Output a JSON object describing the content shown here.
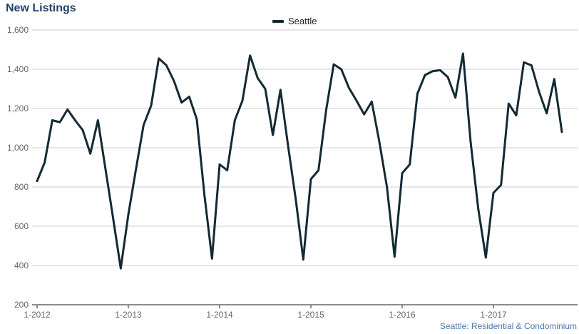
{
  "title": "New Listings",
  "legend": {
    "label": "Seattle"
  },
  "footer": "Seattle: Residential & Condominium",
  "colors": {
    "line": "#132a33",
    "title": "#1f4268",
    "footer": "#4678ae",
    "axis_text": "#666666",
    "grid": "#cccccc",
    "axis_line": "#8c8c8c"
  },
  "chart_data": {
    "type": "line",
    "title": "New Listings",
    "legend_entries": [
      "Seattle"
    ],
    "x_interval": "month",
    "x_tick_labels": [
      "1-2012",
      "1-2013",
      "1-2014",
      "1-2015",
      "1-2016",
      "1-2017"
    ],
    "x_tick_month_indices": [
      0,
      12,
      24,
      36,
      48,
      60
    ],
    "y_ticks": [
      200,
      400,
      600,
      800,
      1000,
      1200,
      1400,
      1600
    ],
    "ylim": [
      200,
      1600
    ],
    "grid": "horizontal",
    "legend_position": "top-center",
    "months": [
      "2012-01",
      "2012-02",
      "2012-03",
      "2012-04",
      "2012-05",
      "2012-06",
      "2012-07",
      "2012-08",
      "2012-09",
      "2012-10",
      "2012-11",
      "2012-12",
      "2013-01",
      "2013-02",
      "2013-03",
      "2013-04",
      "2013-05",
      "2013-06",
      "2013-07",
      "2013-08",
      "2013-09",
      "2013-10",
      "2013-11",
      "2013-12",
      "2014-01",
      "2014-02",
      "2014-03",
      "2014-04",
      "2014-05",
      "2014-06",
      "2014-07",
      "2014-08",
      "2014-09",
      "2014-10",
      "2014-11",
      "2014-12",
      "2015-01",
      "2015-02",
      "2015-03",
      "2015-04",
      "2015-05",
      "2015-06",
      "2015-07",
      "2015-08",
      "2015-09",
      "2015-10",
      "2015-11",
      "2015-12",
      "2016-01",
      "2016-02",
      "2016-03",
      "2016-04",
      "2016-05",
      "2016-06",
      "2016-07",
      "2016-08",
      "2016-09",
      "2016-10",
      "2016-11",
      "2016-12",
      "2017-01",
      "2017-02",
      "2017-03",
      "2017-04",
      "2017-05",
      "2017-06",
      "2017-07",
      "2017-08",
      "2017-09",
      "2017-10"
    ],
    "series": [
      {
        "name": "Seattle",
        "values": [
          830,
          925,
          1140,
          1130,
          1195,
          1140,
          1090,
          970,
          1140,
          890,
          640,
          385,
          660,
          890,
          1115,
          1215,
          1455,
          1420,
          1340,
          1230,
          1260,
          1145,
          760,
          435,
          915,
          885,
          1140,
          1240,
          1470,
          1355,
          1300,
          1065,
          1295,
          1010,
          740,
          430,
          840,
          885,
          1190,
          1425,
          1400,
          1305,
          1240,
          1170,
          1235,
          1030,
          800,
          445,
          870,
          915,
          1275,
          1370,
          1390,
          1395,
          1360,
          1255,
          1480,
          1030,
          690,
          440,
          770,
          810,
          1225,
          1165,
          1435,
          1420,
          1285,
          1175,
          1350,
          1080
        ]
      }
    ]
  }
}
